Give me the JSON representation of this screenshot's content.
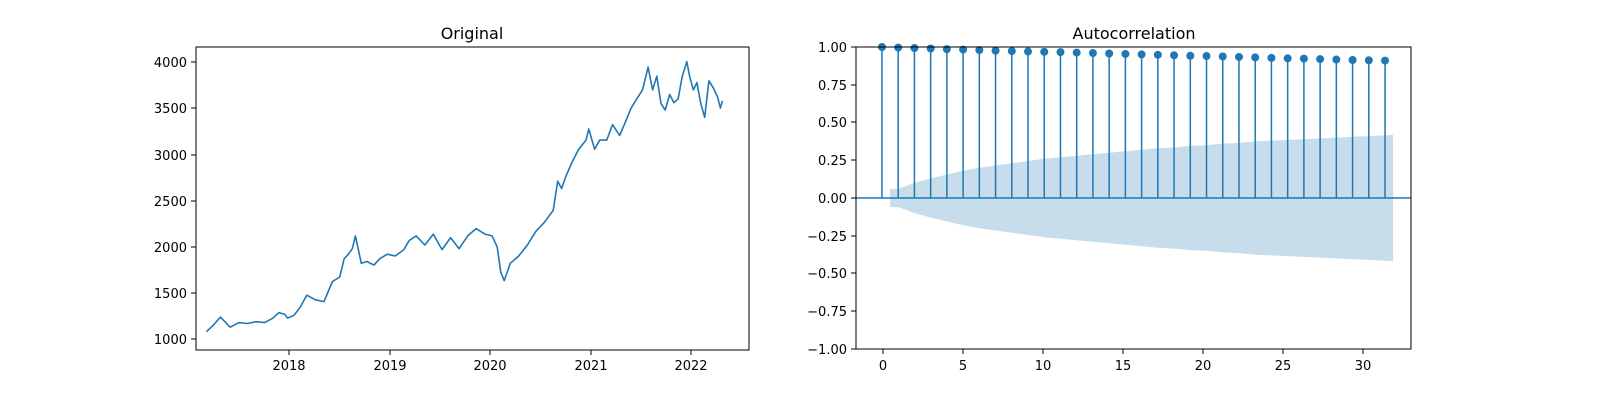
{
  "colors": {
    "series": "#1f77b4",
    "band": "#1f77b4",
    "band_opacity": 0.25,
    "axis": "#000000"
  },
  "chart_data": [
    {
      "type": "line",
      "title": "Original",
      "xlabel": "",
      "ylabel": "",
      "x_ticks": [
        "2018",
        "2019",
        "2020",
        "2021",
        "2022"
      ],
      "y_ticks": [
        "1000",
        "1500",
        "2000",
        "2500",
        "3000",
        "3500",
        "4000"
      ],
      "xlim": [
        "2017-03-20",
        "2022-08-15"
      ],
      "ylim": [
        850,
        4170
      ],
      "grid": false,
      "series": [
        {
          "x": [
            "2017-04-26",
            "2017-05-20",
            "2017-06-15",
            "2017-07-20",
            "2017-08-20",
            "2017-09-20",
            "2017-10-20",
            "2017-11-20",
            "2017-12-20",
            "2018-01-10",
            "2018-01-31",
            "2018-02-10",
            "2018-03-05",
            "2018-03-25",
            "2018-04-20",
            "2018-05-20",
            "2018-06-20",
            "2018-07-20",
            "2018-08-15",
            "2018-08-31",
            "2018-09-15",
            "2018-09-29",
            "2018-10-10",
            "2018-10-31",
            "2018-11-20",
            "2018-12-15",
            "2019-01-05",
            "2019-02-01",
            "2019-03-01",
            "2019-04-01",
            "2019-04-20",
            "2019-05-15",
            "2019-06-15",
            "2019-07-15",
            "2019-08-15",
            "2019-09-15",
            "2019-10-15",
            "2019-11-15",
            "2019-12-15",
            "2020-01-15",
            "2020-02-10",
            "2020-02-28",
            "2020-03-12",
            "2020-03-24",
            "2020-04-15",
            "2020-05-15",
            "2020-06-15",
            "2020-07-15",
            "2020-08-15",
            "2020-09-15",
            "2020-10-01",
            "2020-10-15",
            "2020-10-30",
            "2020-11-20",
            "2020-12-15",
            "2021-01-10",
            "2021-01-20",
            "2021-02-10",
            "2021-02-28",
            "2021-03-25",
            "2021-04-15",
            "2021-05-10",
            "2021-05-31",
            "2021-06-20",
            "2021-07-10",
            "2021-07-31",
            "2021-08-20",
            "2021-09-05",
            "2021-09-20",
            "2021-10-05",
            "2021-10-20",
            "2021-11-05",
            "2021-11-20",
            "2021-12-05",
            "2021-12-20",
            "2022-01-05",
            "2022-01-15",
            "2022-01-28",
            "2022-02-10",
            "2022-02-24",
            "2022-03-10",
            "2022-03-25",
            "2022-04-10",
            "2022-04-25",
            "2022-05-05",
            "2022-05-12"
          ],
          "values": [
            1050,
            1120,
            1210,
            1100,
            1150,
            1140,
            1160,
            1150,
            1200,
            1260,
            1240,
            1200,
            1230,
            1310,
            1450,
            1400,
            1380,
            1600,
            1650,
            1850,
            1900,
            1960,
            2100,
            1800,
            1820,
            1780,
            1850,
            1900,
            1880,
            1950,
            2050,
            2100,
            2000,
            2120,
            1950,
            2080,
            1960,
            2100,
            2180,
            2120,
            2100,
            1980,
            1700,
            1610,
            1800,
            1880,
            2000,
            2150,
            2250,
            2380,
            2700,
            2620,
            2750,
            2900,
            3050,
            3150,
            3270,
            3050,
            3150,
            3150,
            3320,
            3200,
            3350,
            3500,
            3600,
            3700,
            3950,
            3700,
            3850,
            3550,
            3480,
            3650,
            3560,
            3600,
            3850,
            4010,
            3850,
            3700,
            3780,
            3550,
            3400,
            3800,
            3720,
            3620,
            3500,
            3580
          ]
        }
      ]
    },
    {
      "type": "stem",
      "title": "Autocorrelation",
      "xlabel": "",
      "ylabel": "",
      "x_ticks": [
        "0",
        "5",
        "10",
        "15",
        "20",
        "25",
        "30"
      ],
      "y_ticks": [
        "1.00",
        "0.75",
        "0.50",
        "0.25",
        "0.00",
        "−0.25",
        "−0.50",
        "−0.75",
        "−1.00"
      ],
      "xlim": [
        -1.6,
        32.6
      ],
      "ylim": [
        -1,
        1
      ],
      "grid": false,
      "lags": [
        0,
        1,
        2,
        3,
        4,
        5,
        6,
        7,
        8,
        9,
        10,
        11,
        12,
        13,
        14,
        15,
        16,
        17,
        18,
        19,
        20,
        21,
        22,
        23,
        24,
        25,
        26,
        27,
        28,
        29,
        30,
        31
      ],
      "values": [
        1.0,
        0.996,
        0.993,
        0.99,
        0.986,
        0.983,
        0.98,
        0.976,
        0.973,
        0.97,
        0.968,
        0.966,
        0.963,
        0.96,
        0.957,
        0.954,
        0.951,
        0.948,
        0.945,
        0.942,
        0.94,
        0.937,
        0.934,
        0.931,
        0.928,
        0.925,
        0.923,
        0.92,
        0.917,
        0.914,
        0.912,
        0.91
      ],
      "confidence_band": {
        "lags": [
          0.5,
          1,
          2,
          3,
          4,
          5,
          6,
          7,
          8,
          9,
          10,
          11,
          12,
          13,
          14,
          15,
          16,
          17,
          18,
          19,
          20,
          21,
          22,
          23,
          24,
          25,
          26,
          27,
          28,
          29,
          30,
          31,
          31.5
        ],
        "upper": [
          0.06,
          0.06,
          0.1,
          0.13,
          0.155,
          0.18,
          0.2,
          0.215,
          0.23,
          0.245,
          0.26,
          0.27,
          0.28,
          0.29,
          0.3,
          0.31,
          0.32,
          0.33,
          0.335,
          0.345,
          0.35,
          0.36,
          0.365,
          0.375,
          0.38,
          0.385,
          0.39,
          0.395,
          0.4,
          0.405,
          0.41,
          0.415,
          0.418
        ]
      }
    }
  ]
}
